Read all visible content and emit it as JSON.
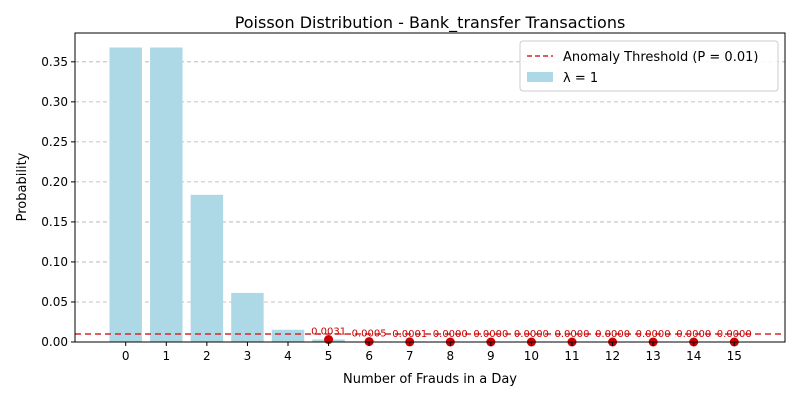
{
  "chart_data": {
    "type": "bar",
    "title": "Poisson Distribution - Bank_transfer Transactions",
    "xlabel": "Number of Frauds in a Day",
    "ylabel": "Probability",
    "x": [
      0,
      1,
      2,
      3,
      4,
      5,
      6,
      7,
      8,
      9,
      10,
      11,
      12,
      13,
      14,
      15
    ],
    "xlim": [
      -1.25,
      16.25
    ],
    "ylim": [
      0,
      0.386
    ],
    "yticks": [
      0.0,
      0.05,
      0.1,
      0.15,
      0.2,
      0.25,
      0.3,
      0.35
    ],
    "ytick_labels": [
      "0.00",
      "0.05",
      "0.10",
      "0.15",
      "0.20",
      "0.25",
      "0.30",
      "0.35"
    ],
    "grid": "y-dashed",
    "legend_position": "top-right",
    "series": [
      {
        "name": "λ = 1",
        "color": "#add8e6",
        "values": [
          0.3679,
          0.3679,
          0.1839,
          0.0613,
          0.0153,
          0.0031,
          0.0005,
          0.0001,
          0.0,
          0.0,
          0.0,
          0.0,
          0.0,
          0.0,
          0.0,
          0.0
        ]
      }
    ],
    "threshold": {
      "label": "Anomaly Threshold (P = 0.01)",
      "value": 0.01,
      "color": "#d62728"
    },
    "anomalies": {
      "color": "#cc0000",
      "x": [
        5,
        6,
        7,
        8,
        9,
        10,
        11,
        12,
        13,
        14,
        15
      ],
      "values": [
        0.0031,
        0.0005,
        0.0001,
        0.0,
        0.0,
        0.0,
        0.0,
        0.0,
        0.0,
        0.0,
        0.0
      ],
      "labels": [
        "0.0031",
        "0.0005",
        "0.0001",
        "0.0000",
        "0.0000",
        "0.0000",
        "0.0000",
        "0.0000",
        "0.0000",
        "0.0000",
        "0.0000"
      ]
    }
  }
}
